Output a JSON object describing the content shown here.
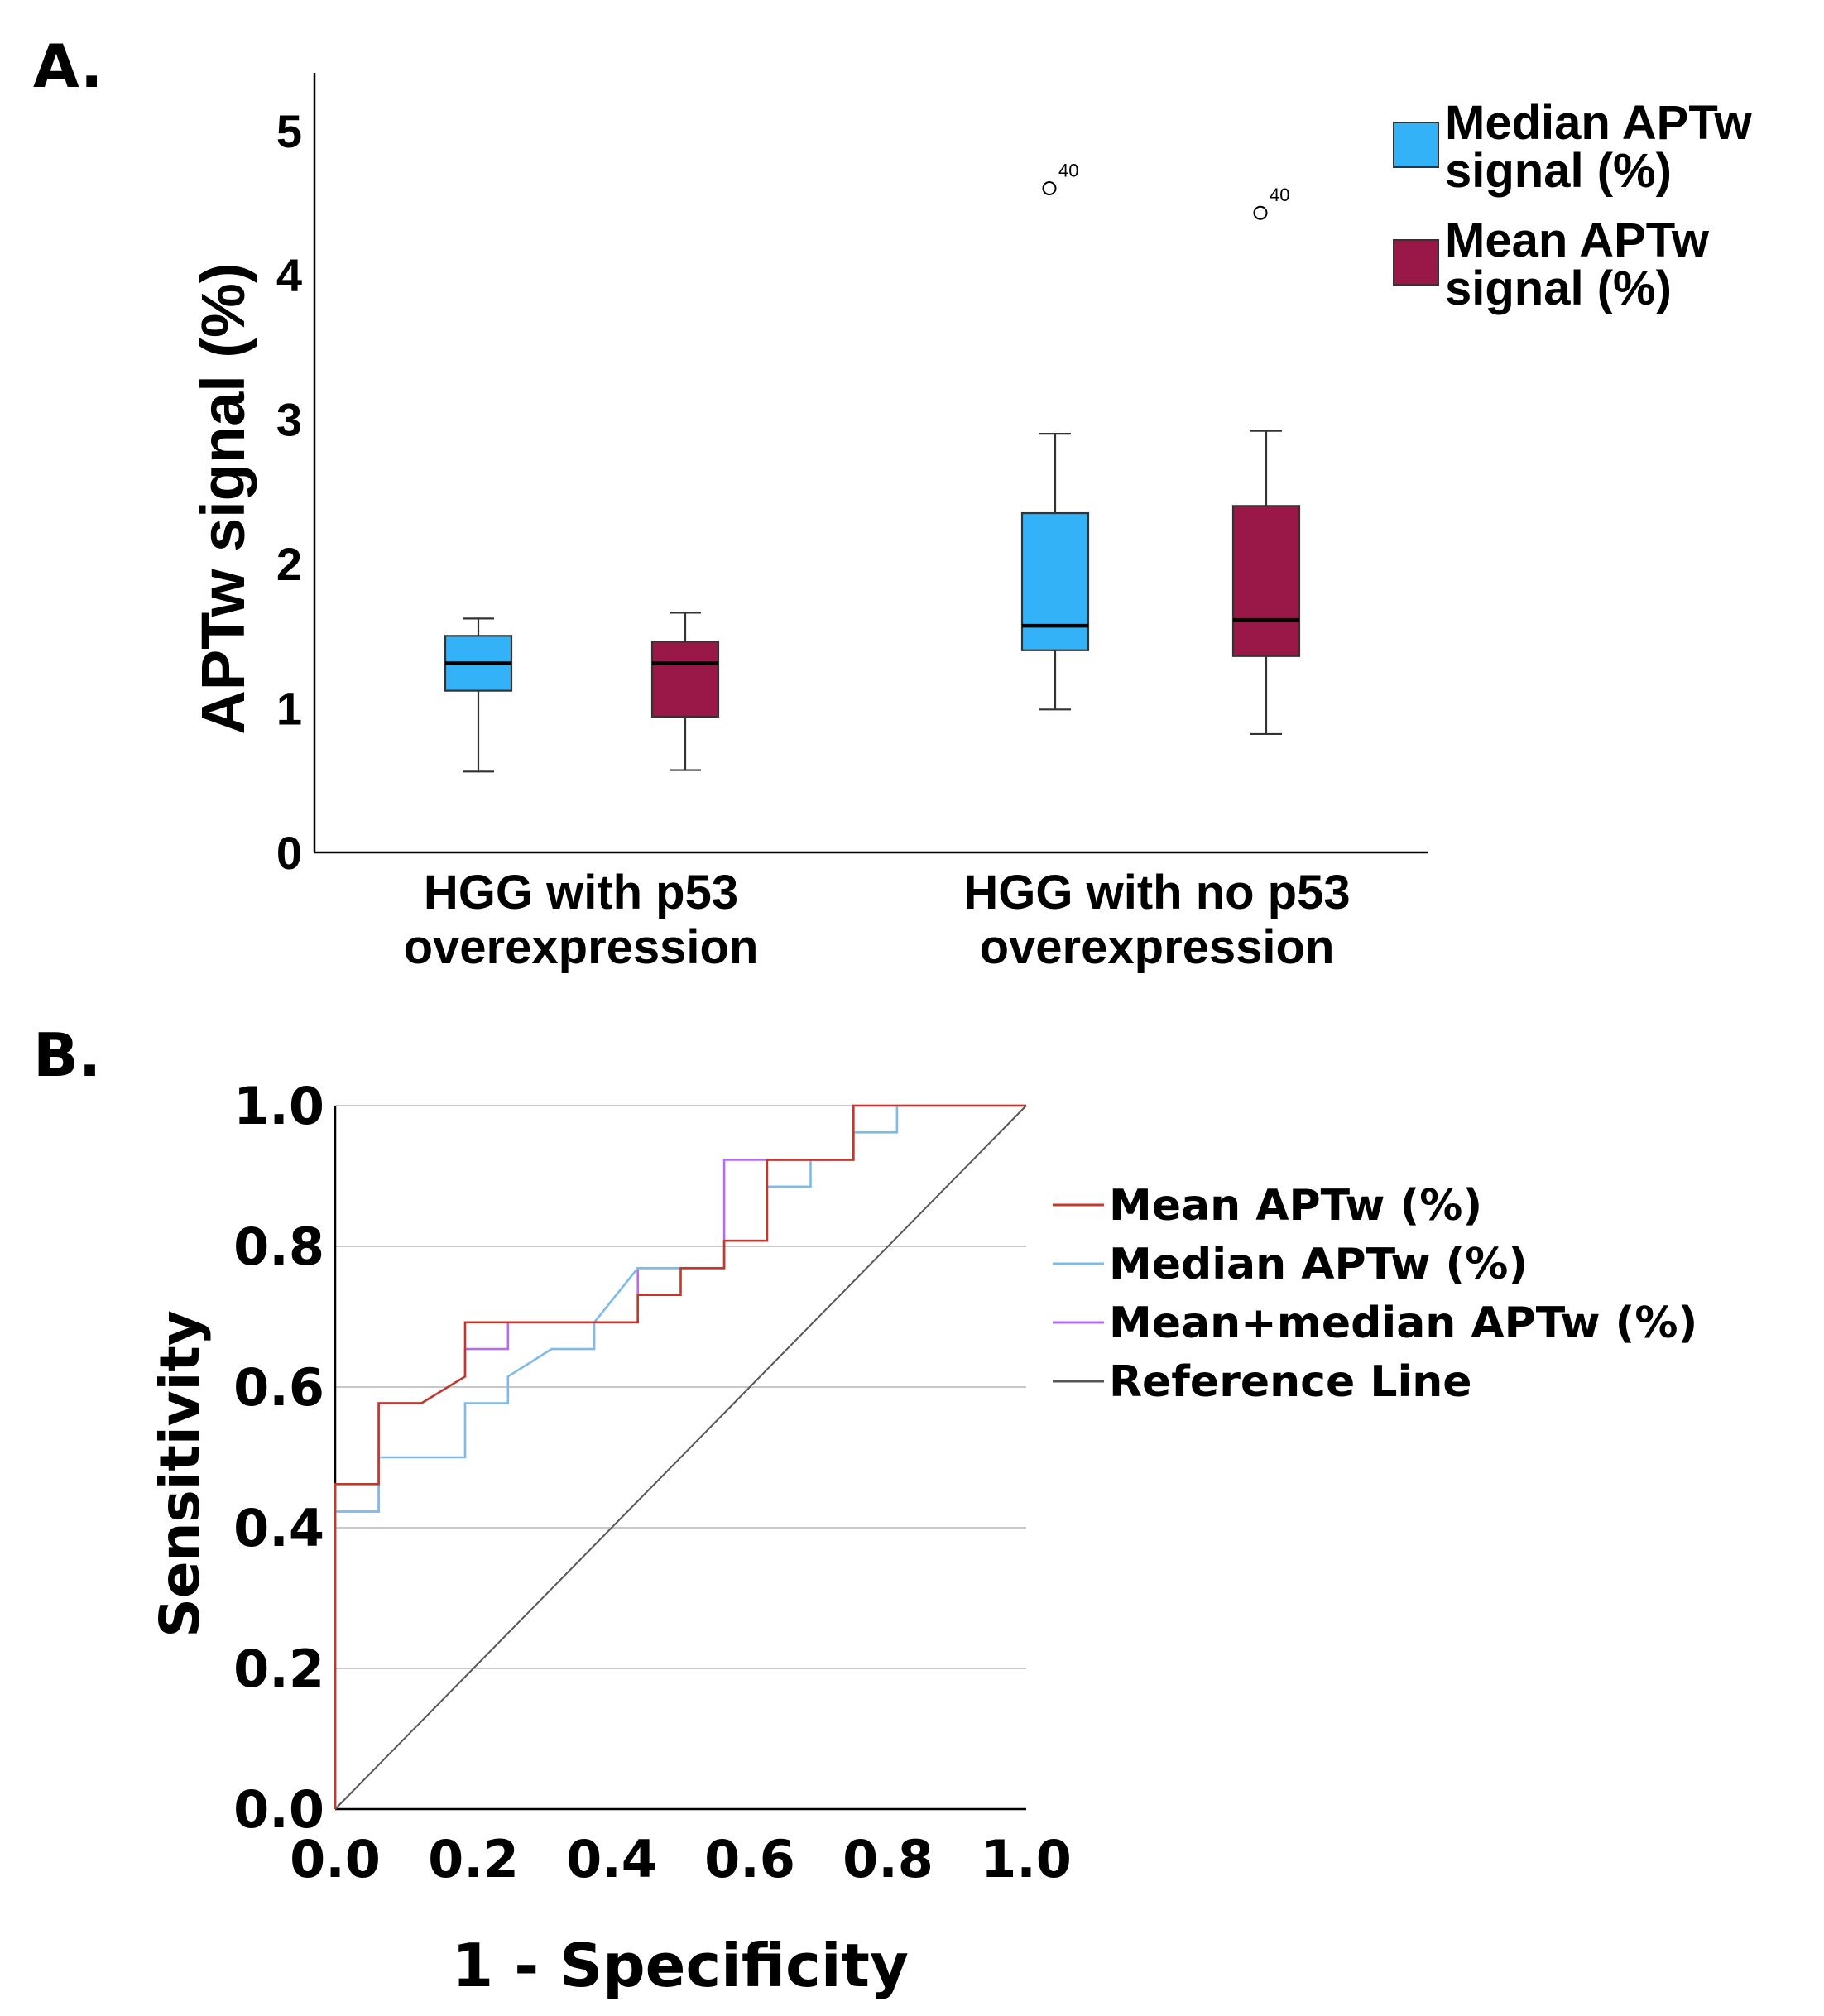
{
  "chart_data": [
    {
      "panel": "A.",
      "type": "boxplot",
      "ylabel": "APTw signal (%)",
      "ylim": [
        0,
        5.4
      ],
      "yticks": [
        "0",
        "1",
        "2",
        "3",
        "4",
        "5"
      ],
      "categories": [
        "HGG with p53\noverexpression",
        "HGG with no p53\noverexpression"
      ],
      "legend_position": "top-right",
      "series": [
        {
          "name": "Median APTw\nsignal (%)",
          "color": "#33b2f8",
          "boxes": [
            {
              "min": 0.56,
              "q1": 1.12,
              "median": 1.31,
              "q3": 1.5,
              "max": 1.62,
              "outliers": []
            },
            {
              "min": 0.99,
              "q1": 1.4,
              "median": 1.57,
              "q3": 2.35,
              "max": 2.9,
              "outliers": [
                {
                  "value": 4.6,
                  "label": "40"
                }
              ]
            }
          ]
        },
        {
          "name": "Mean APTw\nsignal (%)",
          "color": "#9a1848",
          "boxes": [
            {
              "min": 0.57,
              "q1": 0.94,
              "median": 1.31,
              "q3": 1.46,
              "max": 1.66,
              "outliers": []
            },
            {
              "min": 0.82,
              "q1": 1.36,
              "median": 1.61,
              "q3": 2.4,
              "max": 2.92,
              "outliers": [
                {
                  "value": 4.43,
                  "label": "40"
                }
              ]
            }
          ]
        }
      ]
    },
    {
      "panel": "B.",
      "type": "line",
      "xlabel": "1 - Specificity",
      "ylabel": "Sensitivity",
      "xlim": [
        0,
        1
      ],
      "ylim": [
        0,
        1
      ],
      "xticks": [
        "0.0",
        "0.2",
        "0.4",
        "0.6",
        "0.8",
        "1.0"
      ],
      "yticks": [
        "0.0",
        "0.2",
        "0.4",
        "0.6",
        "0.8",
        "1.0"
      ],
      "grid": "horizontal",
      "legend_position": "right",
      "series": [
        {
          "name": "Mean APTw (%)",
          "color": "#c0392b",
          "points": [
            [
              0,
              0
            ],
            [
              0,
              0.462
            ],
            [
              0.063,
              0.462
            ],
            [
              0.063,
              0.577
            ],
            [
              0.125,
              0.577
            ],
            [
              0.188,
              0.615
            ],
            [
              0.188,
              0.692
            ],
            [
              0.438,
              0.692
            ],
            [
              0.438,
              0.731
            ],
            [
              0.5,
              0.731
            ],
            [
              0.5,
              0.769
            ],
            [
              0.563,
              0.769
            ],
            [
              0.563,
              0.808
            ],
            [
              0.625,
              0.808
            ],
            [
              0.625,
              0.923
            ],
            [
              0.75,
              0.923
            ],
            [
              0.75,
              1.0
            ],
            [
              1,
              1
            ]
          ]
        },
        {
          "name": "Median APTw (%)",
          "color": "#7fbbe8",
          "points": [
            [
              0,
              0
            ],
            [
              0,
              0.423
            ],
            [
              0.063,
              0.423
            ],
            [
              0.063,
              0.5
            ],
            [
              0.188,
              0.5
            ],
            [
              0.188,
              0.577
            ],
            [
              0.25,
              0.577
            ],
            [
              0.25,
              0.615
            ],
            [
              0.313,
              0.654
            ],
            [
              0.375,
              0.654
            ],
            [
              0.375,
              0.692
            ],
            [
              0.438,
              0.769
            ],
            [
              0.563,
              0.769
            ],
            [
              0.563,
              0.808
            ],
            [
              0.625,
              0.808
            ],
            [
              0.625,
              0.885
            ],
            [
              0.688,
              0.885
            ],
            [
              0.688,
              0.923
            ],
            [
              0.75,
              0.923
            ],
            [
              0.75,
              0.962
            ],
            [
              0.813,
              0.962
            ],
            [
              0.813,
              1.0
            ],
            [
              1,
              1
            ]
          ]
        },
        {
          "name": "Mean+median APTw (%)",
          "color": "#b66cf0",
          "points": [
            [
              0,
              0
            ],
            [
              0,
              0.423
            ],
            [
              0.063,
              0.423
            ],
            [
              0.063,
              0.577
            ],
            [
              0.125,
              0.577
            ],
            [
              0.188,
              0.615
            ],
            [
              0.188,
              0.654
            ],
            [
              0.25,
              0.654
            ],
            [
              0.25,
              0.692
            ],
            [
              0.438,
              0.692
            ],
            [
              0.438,
              0.769
            ],
            [
              0.563,
              0.769
            ],
            [
              0.563,
              0.923
            ],
            [
              0.75,
              0.923
            ],
            [
              0.75,
              1.0
            ],
            [
              1,
              1
            ]
          ]
        },
        {
          "name": "Reference Line",
          "color": "#555555",
          "points": [
            [
              0,
              0
            ],
            [
              1,
              1
            ]
          ]
        }
      ]
    }
  ]
}
